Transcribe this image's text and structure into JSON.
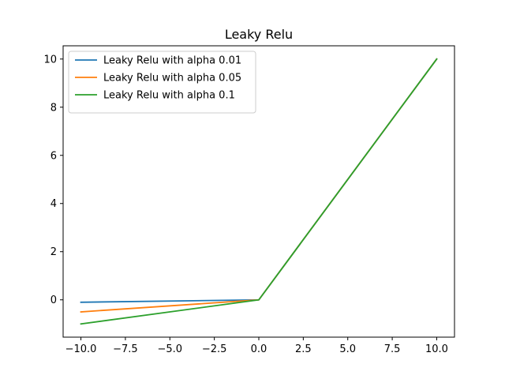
{
  "chart_data": {
    "type": "line",
    "title": "Leaky Relu",
    "xlabel": "",
    "ylabel": "",
    "xlim": [
      -11.0,
      11.0
    ],
    "ylim": [
      -1.55,
      10.55
    ],
    "xticks": [
      -10.0,
      -7.5,
      -5.0,
      -2.5,
      0.0,
      2.5,
      5.0,
      7.5,
      10.0
    ],
    "xtick_labels": [
      "−10.0",
      "−7.5",
      "−5.0",
      "−2.5",
      "0.0",
      "2.5",
      "5.0",
      "7.5",
      "10.0"
    ],
    "yticks": [
      0,
      2,
      4,
      6,
      8,
      10
    ],
    "ytick_labels": [
      "0",
      "2",
      "4",
      "6",
      "8",
      "10"
    ],
    "grid": false,
    "legend_position": "top-left",
    "series": [
      {
        "name": "Leaky Relu with alpha 0.01",
        "color": "#1f77b4",
        "x": [
          -10,
          0,
          10
        ],
        "y": [
          -0.1,
          0,
          10
        ]
      },
      {
        "name": "Leaky Relu with alpha 0.05",
        "color": "#ff7f0e",
        "x": [
          -10,
          0,
          10
        ],
        "y": [
          -0.5,
          0,
          10
        ]
      },
      {
        "name": "Leaky Relu with alpha 0.1",
        "color": "#2ca02c",
        "x": [
          -10,
          0,
          10
        ],
        "y": [
          -1.0,
          0,
          10
        ]
      }
    ]
  }
}
